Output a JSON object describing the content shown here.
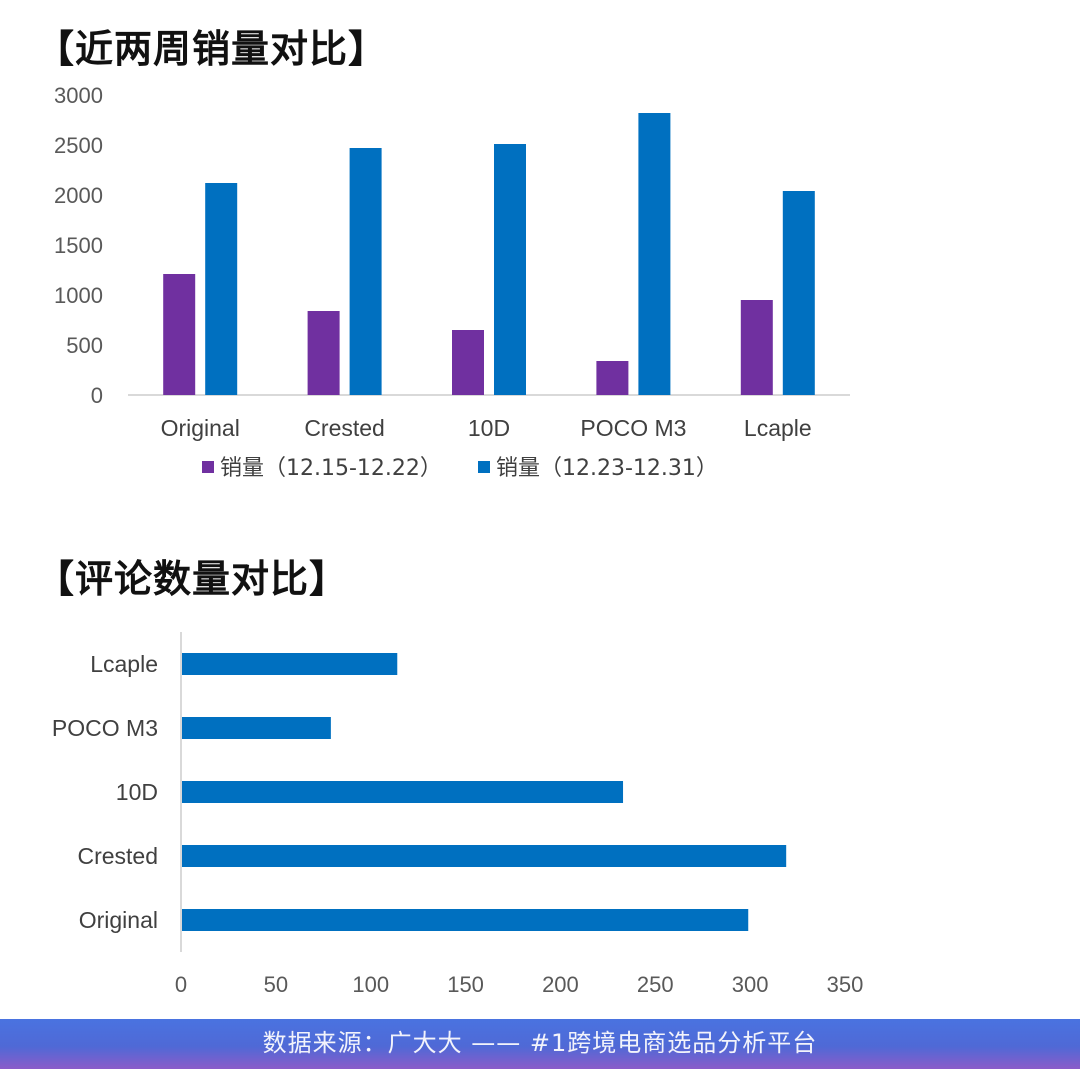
{
  "title1": "【近两周销量对比】",
  "title2": "【评论数量对比】",
  "footer": "数据来源：广大大 —— #1跨境电商选品分析平台",
  "colors": {
    "series1": "#7030a0",
    "series2": "#0070c0",
    "axis": "#d9d9d9"
  },
  "chart_data": [
    {
      "type": "bar",
      "categories": [
        "Original",
        "Crested",
        "10D",
        "POCO M3",
        "Lcaple"
      ],
      "series": [
        {
          "name": "销量（12.15-12.22）",
          "values": [
            1210,
            840,
            650,
            340,
            950
          ]
        },
        {
          "name": "销量（12.23-12.31）",
          "values": [
            2120,
            2470,
            2510,
            2820,
            2040
          ]
        }
      ],
      "yticks": [
        0,
        500,
        1000,
        1500,
        2000,
        2500,
        3000
      ],
      "ylim": [
        0,
        3000
      ],
      "grid": false,
      "legend": "bottom"
    },
    {
      "type": "bar",
      "orientation": "horizontal",
      "categories": [
        "Original",
        "Crested",
        "10D",
        "POCO M3",
        "Lcaple"
      ],
      "values": [
        299,
        319,
        233,
        79,
        114
      ],
      "xticks": [
        0,
        50,
        100,
        150,
        200,
        250,
        300,
        350
      ],
      "xlim": [
        0,
        350
      ],
      "grid": false,
      "legend": "none"
    }
  ]
}
